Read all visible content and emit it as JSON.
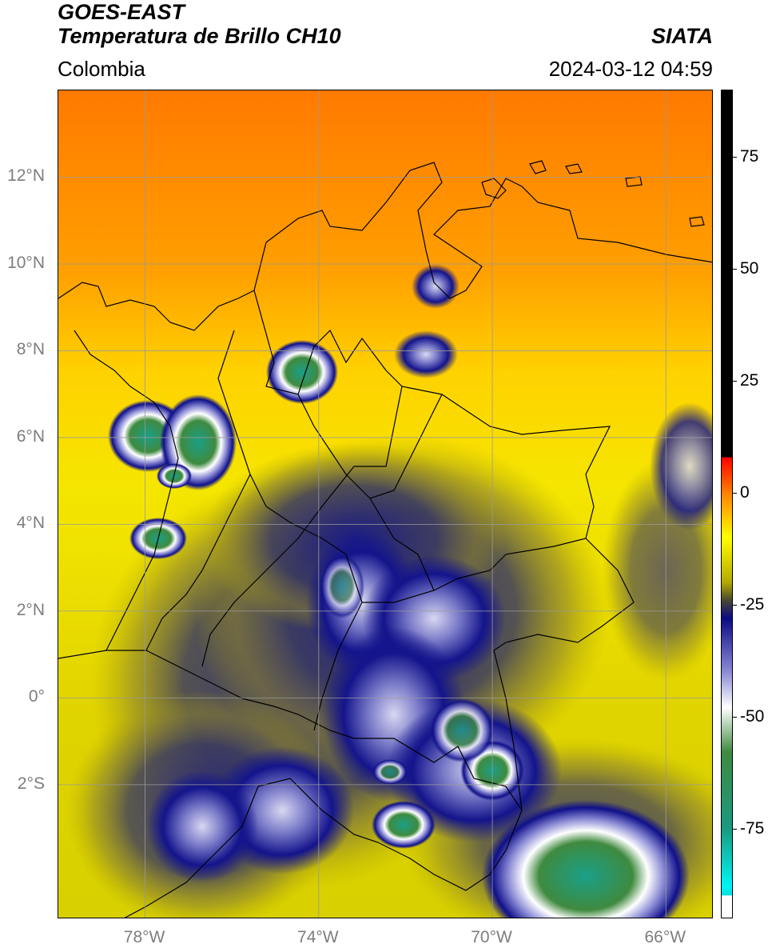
{
  "header": {
    "satellite": "GOES-EAST",
    "product": "Temperatura de Brillo CH10",
    "region": "Colombia",
    "source": "SIATA",
    "timestamp": "2024-03-12 04:59"
  },
  "map": {
    "lon_range": [
      -80,
      -64.9
    ],
    "lat_range": [
      -5.1,
      14
    ],
    "lat_ticks": [
      {
        "value": 12,
        "label": "12°N"
      },
      {
        "value": 10,
        "label": "10°N"
      },
      {
        "value": 8,
        "label": "8°N"
      },
      {
        "value": 6,
        "label": "6°N"
      },
      {
        "value": 4,
        "label": "4°N"
      },
      {
        "value": 2,
        "label": "2°N"
      },
      {
        "value": 0,
        "label": "0°"
      },
      {
        "value": -2,
        "label": "2°S"
      }
    ],
    "lon_ticks": [
      {
        "value": -78,
        "label": "78°W"
      },
      {
        "value": -74,
        "label": "74°W"
      },
      {
        "value": -70,
        "label": "70°W"
      },
      {
        "value": -66,
        "label": "66°W"
      }
    ],
    "grid": true
  },
  "colorbar": {
    "range": [
      -95,
      90
    ],
    "ticks": [
      {
        "value": 75,
        "label": "75"
      },
      {
        "value": 50,
        "label": "50"
      },
      {
        "value": 25,
        "label": "25"
      },
      {
        "value": 0,
        "label": "0"
      },
      {
        "value": -25,
        "label": "-25"
      },
      {
        "value": -50,
        "label": "-50"
      },
      {
        "value": -75,
        "label": "-75"
      }
    ],
    "stops": [
      {
        "value": 90,
        "color": "#000000"
      },
      {
        "value": 8,
        "color": "#000000"
      },
      {
        "value": 7.9,
        "color": "#ff0000"
      },
      {
        "value": 0,
        "color": "#ff8000"
      },
      {
        "value": -10,
        "color": "#ffff00"
      },
      {
        "value": -20,
        "color": "#b4aa00"
      },
      {
        "value": -24,
        "color": "#4a4a30"
      },
      {
        "value": -28,
        "color": "#0a0a85"
      },
      {
        "value": -40,
        "color": "#8a8ad5"
      },
      {
        "value": -48,
        "color": "#ffffff"
      },
      {
        "value": -58,
        "color": "#3f8a3f"
      },
      {
        "value": -75,
        "color": "#1a9a80"
      },
      {
        "value": -88,
        "color": "#00f5f5"
      },
      {
        "value": -90,
        "color": "#00e0e0"
      },
      {
        "value": -90.1,
        "color": "#ffffff"
      },
      {
        "value": -95,
        "color": "#ffffff"
      }
    ]
  }
}
